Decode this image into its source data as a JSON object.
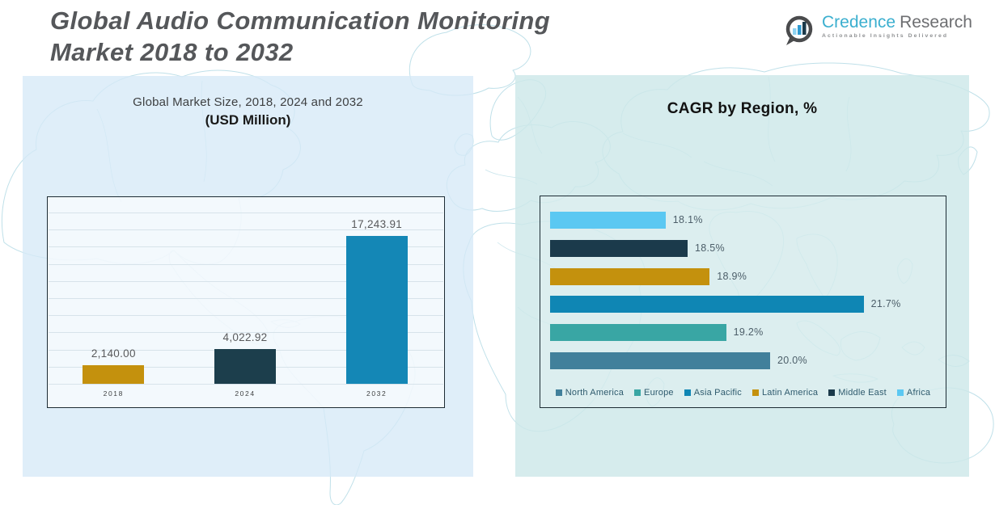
{
  "header": {
    "title_line1": "Global Audio Communication Monitoring",
    "title_line2": "Market 2018 to 2032"
  },
  "logo": {
    "brand_primary": "Credence",
    "brand_secondary": "Research",
    "tagline": "Actionable Insights Delivered",
    "icon": "bar-chart-bubble-icon",
    "brand_primary_color": "#3BAFCF",
    "brand_secondary_color": "#6D6E71"
  },
  "canvas": {
    "page_bg": "#FFFFFF",
    "left_panel_bg": "rgba(214,233,247,0.78)",
    "right_panel_bg": "rgba(205,232,233,0.82)",
    "map_line_color": "#BFE0E9",
    "grid_line_color": "#D7E3EA",
    "chart_border_color": "#1D2C34"
  },
  "chart_data": [
    {
      "type": "bar",
      "title": "Global Market Size, 2018, 2024 and 2032",
      "subtitle": "(USD Million)",
      "categories": [
        "2018",
        "2024",
        "2032"
      ],
      "values": [
        2140.0,
        4022.92,
        17243.91
      ],
      "data_labels": [
        "2,140.00",
        "4,022.92",
        "17,243.91"
      ],
      "colors": [
        "#C4910D",
        "#1C3E4C",
        "#1487B6"
      ],
      "xlabel": "",
      "ylabel": "",
      "ylim": [
        0,
        20000
      ],
      "grid_step": 2000,
      "grid": true,
      "legend_position": "none"
    },
    {
      "type": "bar-horizontal",
      "title": "CAGR by Region, %",
      "bars_top_to_bottom": [
        {
          "name": "Africa",
          "value": 18.1,
          "label": "18.1%",
          "color": "#5BC8F2"
        },
        {
          "name": "Middle East",
          "value": 18.5,
          "label": "18.5%",
          "color": "#1B3A4B"
        },
        {
          "name": "Latin America",
          "value": 18.9,
          "label": "18.9%",
          "color": "#C4910D"
        },
        {
          "name": "Asia Pacific",
          "value": 21.7,
          "label": "21.7%",
          "color": "#0F86B4"
        },
        {
          "name": "Europe",
          "value": 19.2,
          "label": "19.2%",
          "color": "#39A6A4"
        },
        {
          "name": "North America",
          "value": 20.0,
          "label": "20.0%",
          "color": "#41809B"
        }
      ],
      "legend": [
        "North America",
        "Europe",
        "Asia Pacific",
        "Latin America",
        "Middle East",
        "Africa"
      ],
      "legend_position": "bottom",
      "xlim": [
        16,
        23
      ],
      "grid": false
    }
  ]
}
